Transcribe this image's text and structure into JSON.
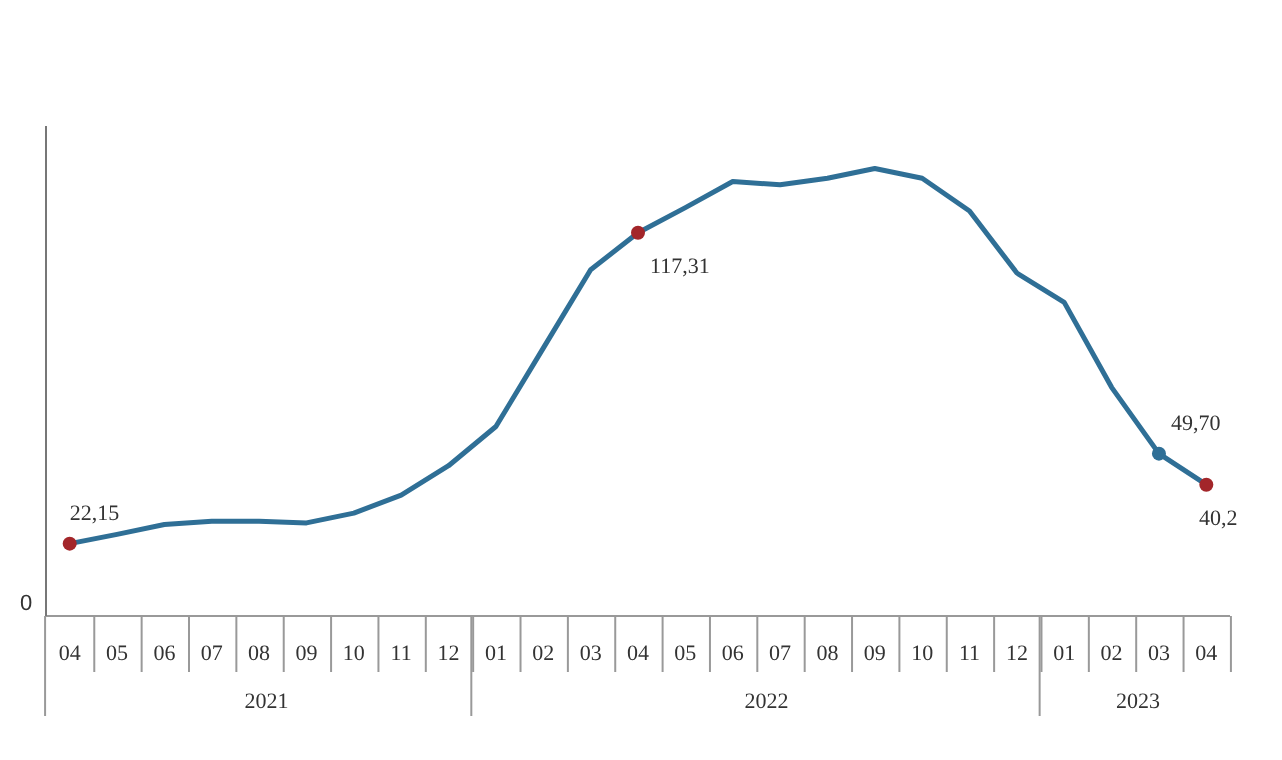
{
  "chart_data": {
    "type": "line",
    "categories": [
      "04",
      "05",
      "06",
      "07",
      "08",
      "09",
      "10",
      "11",
      "12",
      "01",
      "02",
      "03",
      "04",
      "05",
      "06",
      "07",
      "08",
      "09",
      "10",
      "11",
      "12",
      "01",
      "02",
      "03",
      "04"
    ],
    "series": [
      {
        "color": "#2f6f96",
        "values": [
          22.15,
          25,
          28,
          29,
          29,
          28.5,
          31.5,
          37,
          46,
          58,
          82,
          106,
          117.31,
          125,
          133,
          132,
          134,
          137,
          134,
          124,
          105,
          96,
          70,
          49.7,
          40.2
        ],
        "value_labels": [
          "22,15",
          null,
          null,
          null,
          null,
          null,
          null,
          null,
          null,
          null,
          null,
          null,
          "117,31",
          null,
          null,
          null,
          null,
          null,
          null,
          null,
          null,
          null,
          null,
          "49,70",
          "40,2"
        ],
        "colors": [
          "#a3262a",
          null,
          null,
          null,
          null,
          null,
          null,
          null,
          null,
          null,
          null,
          null,
          "#a3262a",
          null,
          null,
          null,
          null,
          null,
          null,
          null,
          null,
          null,
          null,
          "#2f6f96",
          "#a3262a"
        ]
      }
    ],
    "ylim": [
      0,
      150
    ],
    "annotations": [
      "2021",
      "2022",
      "2023",
      "0"
    ],
    "marker": "none",
    "line_style": "solid"
  }
}
